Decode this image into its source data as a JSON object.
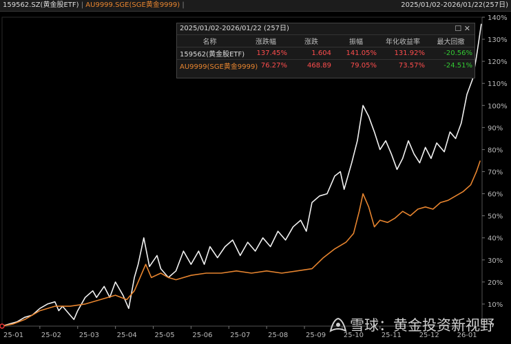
{
  "header": {
    "series1": "159562.SZ(黄金股ETF)",
    "series2": "AU9999.SGE(SGE黄金9999)",
    "separator": "|",
    "range": "2025/01/02-2026/01/22(257日)"
  },
  "panel": {
    "title": "2025/01/02-2026/01/22 (257日)",
    "columns": [
      "名称",
      "涨跌幅",
      "涨跌",
      "振幅",
      "年化收益率",
      "最大回撤"
    ],
    "rows": [
      {
        "name": "159562(黄金股ETF)",
        "cells": [
          "137.45%",
          "1.604",
          "141.05%",
          "131.92%",
          "-20.56%"
        ],
        "name_color": "#dddddd"
      },
      {
        "name": "AU9999(SGE黄金9999)",
        "cells": [
          "76.27%",
          "468.89",
          "79.05%",
          "73.57%",
          "-24.51%"
        ],
        "name_color": "#e8852f"
      }
    ],
    "cell_colors": [
      "#ff4d4d",
      "#ff4d4d",
      "#ff4d4d",
      "#ff4d4d",
      "#33cc33"
    ]
  },
  "watermark": "雪球：黄金投资新视野",
  "chart_data": {
    "type": "line",
    "x_ticks": [
      "25-01",
      "25-02",
      "25-03",
      "25-04",
      "25-05",
      "25-06",
      "25-07",
      "25-08",
      "25-09",
      "25-10",
      "25-11",
      "25-12",
      "26-01"
    ],
    "y_ticks": [
      "10%",
      "20%",
      "30%",
      "40%",
      "50%",
      "60%",
      "70%",
      "80%",
      "90%",
      "100%",
      "110%",
      "120%",
      "130%",
      "140%"
    ],
    "ylim": [
      0,
      140
    ],
    "y_unit": "%",
    "x_range": [
      0,
      12.7
    ],
    "series": [
      {
        "name": "159562.SZ(黄金股ETF)",
        "color": "#f2f2f2",
        "points": [
          [
            0,
            0
          ],
          [
            0.2,
            1
          ],
          [
            0.4,
            2
          ],
          [
            0.6,
            4
          ],
          [
            0.8,
            5
          ],
          [
            1.0,
            8
          ],
          [
            1.2,
            10
          ],
          [
            1.4,
            11
          ],
          [
            1.5,
            7
          ],
          [
            1.6,
            9
          ],
          [
            1.8,
            5
          ],
          [
            1.9,
            3
          ],
          [
            2.0,
            7
          ],
          [
            2.2,
            13
          ],
          [
            2.4,
            16
          ],
          [
            2.5,
            13
          ],
          [
            2.7,
            18
          ],
          [
            2.85,
            13
          ],
          [
            3.0,
            20
          ],
          [
            3.2,
            14
          ],
          [
            3.35,
            8
          ],
          [
            3.5,
            22
          ],
          [
            3.6,
            28
          ],
          [
            3.75,
            40
          ],
          [
            3.9,
            27
          ],
          [
            4.1,
            32
          ],
          [
            4.2,
            26
          ],
          [
            4.4,
            22
          ],
          [
            4.6,
            25
          ],
          [
            4.8,
            34
          ],
          [
            5.0,
            28
          ],
          [
            5.2,
            34
          ],
          [
            5.35,
            28
          ],
          [
            5.5,
            36
          ],
          [
            5.7,
            31
          ],
          [
            5.9,
            36
          ],
          [
            6.1,
            39
          ],
          [
            6.3,
            32
          ],
          [
            6.5,
            38
          ],
          [
            6.7,
            34
          ],
          [
            6.9,
            40
          ],
          [
            7.1,
            36
          ],
          [
            7.3,
            43
          ],
          [
            7.5,
            39
          ],
          [
            7.7,
            45
          ],
          [
            7.9,
            48
          ],
          [
            8.05,
            43
          ],
          [
            8.2,
            56
          ],
          [
            8.4,
            59
          ],
          [
            8.6,
            60
          ],
          [
            8.8,
            68
          ],
          [
            8.95,
            70
          ],
          [
            9.05,
            62
          ],
          [
            9.25,
            74
          ],
          [
            9.4,
            84
          ],
          [
            9.55,
            100
          ],
          [
            9.7,
            95
          ],
          [
            9.85,
            88
          ],
          [
            10.0,
            80
          ],
          [
            10.15,
            84
          ],
          [
            10.3,
            78
          ],
          [
            10.45,
            71
          ],
          [
            10.6,
            76
          ],
          [
            10.75,
            84
          ],
          [
            10.9,
            78
          ],
          [
            11.05,
            74
          ],
          [
            11.2,
            81
          ],
          [
            11.35,
            76
          ],
          [
            11.5,
            83
          ],
          [
            11.7,
            79
          ],
          [
            11.85,
            88
          ],
          [
            12.0,
            85
          ],
          [
            12.15,
            92
          ],
          [
            12.3,
            105
          ],
          [
            12.45,
            112
          ],
          [
            12.55,
            122
          ],
          [
            12.62,
            130
          ],
          [
            12.68,
            137
          ]
        ]
      },
      {
        "name": "AU9999.SGE(SGE黄金9999)",
        "color": "#e8852f",
        "points": [
          [
            0,
            0
          ],
          [
            0.3,
            1
          ],
          [
            0.6,
            3
          ],
          [
            1.0,
            7
          ],
          [
            1.4,
            9
          ],
          [
            1.8,
            9
          ],
          [
            2.2,
            10
          ],
          [
            2.6,
            12
          ],
          [
            3.0,
            14
          ],
          [
            3.3,
            12
          ],
          [
            3.5,
            16
          ],
          [
            3.7,
            24
          ],
          [
            3.8,
            28
          ],
          [
            3.95,
            22
          ],
          [
            4.2,
            24
          ],
          [
            4.4,
            22
          ],
          [
            4.6,
            21
          ],
          [
            5.0,
            23
          ],
          [
            5.4,
            24
          ],
          [
            5.8,
            24
          ],
          [
            6.2,
            25
          ],
          [
            6.6,
            24
          ],
          [
            7.0,
            25
          ],
          [
            7.4,
            24
          ],
          [
            7.8,
            25
          ],
          [
            8.2,
            26
          ],
          [
            8.5,
            31
          ],
          [
            8.8,
            35
          ],
          [
            9.1,
            38
          ],
          [
            9.3,
            42
          ],
          [
            9.45,
            52
          ],
          [
            9.55,
            60
          ],
          [
            9.7,
            54
          ],
          [
            9.85,
            45
          ],
          [
            10.0,
            48
          ],
          [
            10.2,
            47
          ],
          [
            10.4,
            49
          ],
          [
            10.6,
            52
          ],
          [
            10.8,
            50
          ],
          [
            11.0,
            53
          ],
          [
            11.2,
            54
          ],
          [
            11.4,
            53
          ],
          [
            11.6,
            56
          ],
          [
            11.8,
            57
          ],
          [
            12.0,
            59
          ],
          [
            12.2,
            61
          ],
          [
            12.4,
            64
          ],
          [
            12.55,
            70
          ],
          [
            12.65,
            75
          ]
        ]
      }
    ]
  }
}
